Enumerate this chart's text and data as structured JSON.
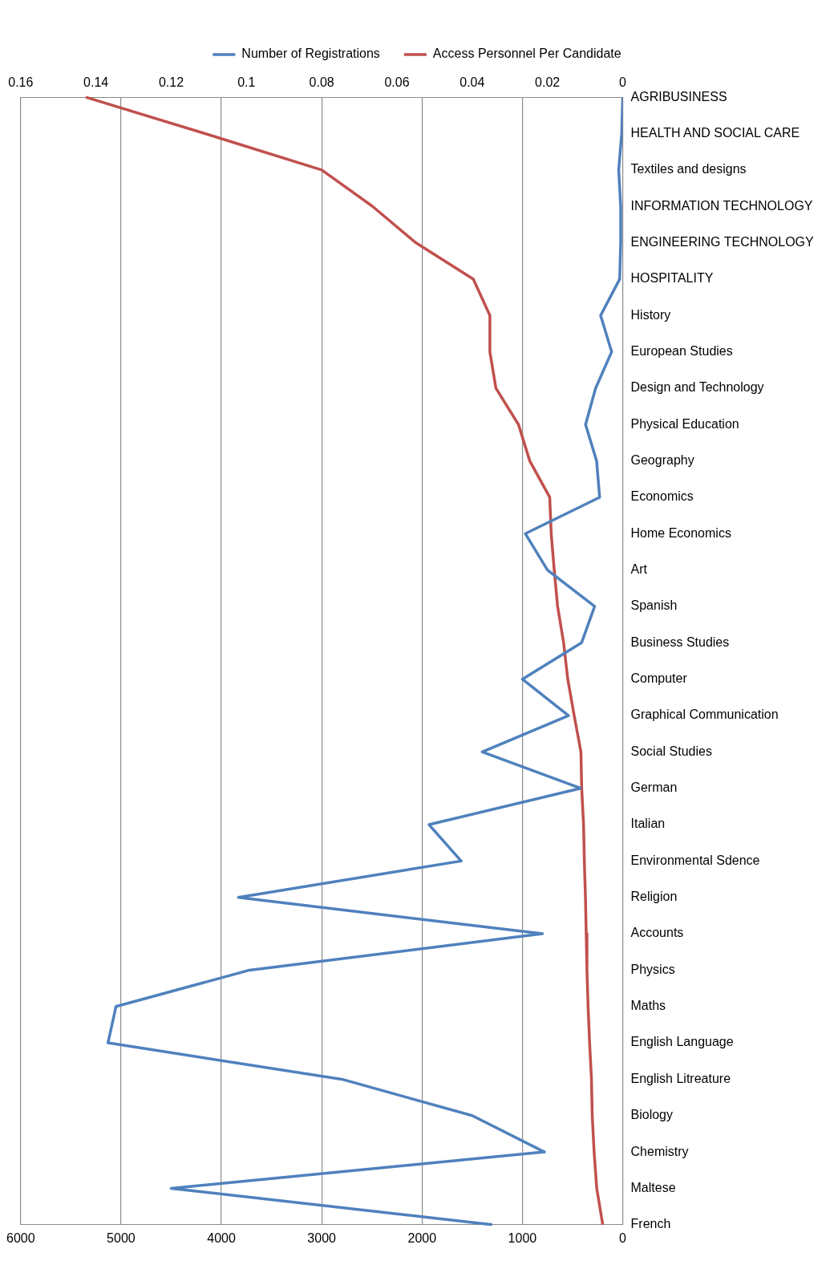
{
  "chart_data": {
    "type": "line",
    "orientation": "horizontal",
    "categories": [
      "AGRIBUSINESS",
      "HEALTH AND SOCIAL CARE",
      "Textiles and designs",
      "INFORMATION TECHNOLOGY",
      "ENGINEERING TECHNOLOGY",
      "HOSPITALITY",
      "History",
      "European Studies",
      "Design and Technology",
      "Physical Education",
      "Geography",
      "Economics",
      "Home Economics",
      "Art",
      "Spanish",
      "Business Studies",
      "Computer",
      "Graphical Communication",
      "Social Studies",
      "German",
      "Italian",
      "Environmental Sdence",
      "Religion",
      "Accounts",
      "Physics",
      "Maths",
      "English Language",
      "English Litreature",
      "Biology",
      "Chemistry",
      "Maltese",
      "French"
    ],
    "series": [
      {
        "name": "Number of Registrations",
        "color": "#4f81bd",
        "values": [
          0,
          10,
          40,
          20,
          20,
          30,
          220,
          110,
          270,
          370,
          260,
          230,
          970,
          750,
          280,
          410,
          1000,
          540,
          1400,
          420,
          1930,
          1610,
          3830,
          800,
          3720,
          5050,
          5130,
          2800,
          1500,
          780,
          4500,
          1300
        ]
      },
      {
        "name": "Access Personnel Per Candidate",
        "color": "#c0504d",
        "axis": "x2",
        "values": [
          0.1427,
          0.111,
          0.08,
          0.0665,
          0.055,
          0.0397,
          0.0353,
          0.0353,
          0.0337,
          0.0277,
          0.0247,
          0.0194,
          0.019,
          0.0182,
          0.0173,
          0.0157,
          0.0146,
          0.0129,
          0.0111,
          0.0109,
          0.0104,
          0.0102,
          0.0099,
          0.0097,
          0.0095,
          0.0092,
          0.0088,
          0.0083,
          0.0081,
          0.0076,
          0.0069,
          0.0053
        ]
      }
    ],
    "xlim": [
      6000,
      0
    ],
    "xticks": [
      6000,
      5000,
      4000,
      3000,
      2000,
      1000,
      0
    ],
    "x2lim": [
      0.16,
      0
    ],
    "x2ticks": [
      0.16,
      0.14,
      0.12,
      0.1,
      0.08,
      0.06,
      0.04,
      0.02,
      0
    ],
    "grid": "x",
    "legend": "top",
    "marker": "none",
    "line_style": "solid"
  }
}
